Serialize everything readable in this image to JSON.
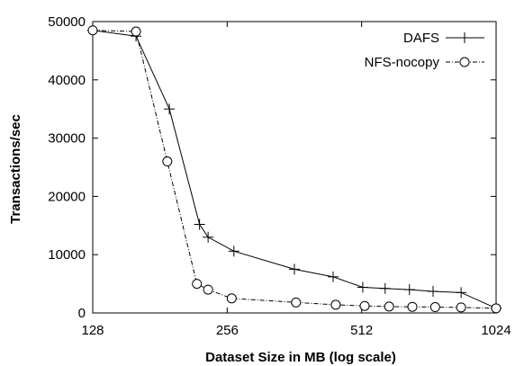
{
  "chart_data": {
    "type": "line",
    "title": "",
    "xlabel": "Dataset Size in MB (log scale)",
    "ylabel": "Transactions/sec",
    "x_scale": "log2",
    "xlim": [
      128,
      1024
    ],
    "ylim": [
      0,
      50000
    ],
    "x_ticks": [
      128,
      256,
      512,
      1024
    ],
    "y_ticks": [
      0,
      10000,
      20000,
      30000,
      40000,
      50000
    ],
    "grid": false,
    "legend_position": "top-right",
    "series": [
      {
        "name": "DAFS",
        "marker": "plus",
        "line_style": "solid",
        "color": "#000000",
        "points": [
          [
            128,
            48500
          ],
          [
            160,
            47500
          ],
          [
            190,
            35000
          ],
          [
            222,
            15200
          ],
          [
            232,
            13000
          ],
          [
            265,
            10600
          ],
          [
            362,
            7500
          ],
          [
            442,
            6200
          ],
          [
            515,
            4400
          ],
          [
            578,
            4200
          ],
          [
            655,
            4000
          ],
          [
            740,
            3700
          ],
          [
            855,
            3500
          ],
          [
            1024,
            800
          ]
        ]
      },
      {
        "name": "NFS-nocopy",
        "marker": "circle",
        "line_style": "dashdot",
        "color": "#000000",
        "points": [
          [
            128,
            48500
          ],
          [
            160,
            48300
          ],
          [
            188,
            26000
          ],
          [
            219,
            5000
          ],
          [
            232,
            4000
          ],
          [
            262,
            2500
          ],
          [
            365,
            1800
          ],
          [
            448,
            1400
          ],
          [
            520,
            1200
          ],
          [
            590,
            1100
          ],
          [
            665,
            1050
          ],
          [
            748,
            1000
          ],
          [
            855,
            950
          ],
          [
            1024,
            800
          ]
        ]
      }
    ]
  }
}
